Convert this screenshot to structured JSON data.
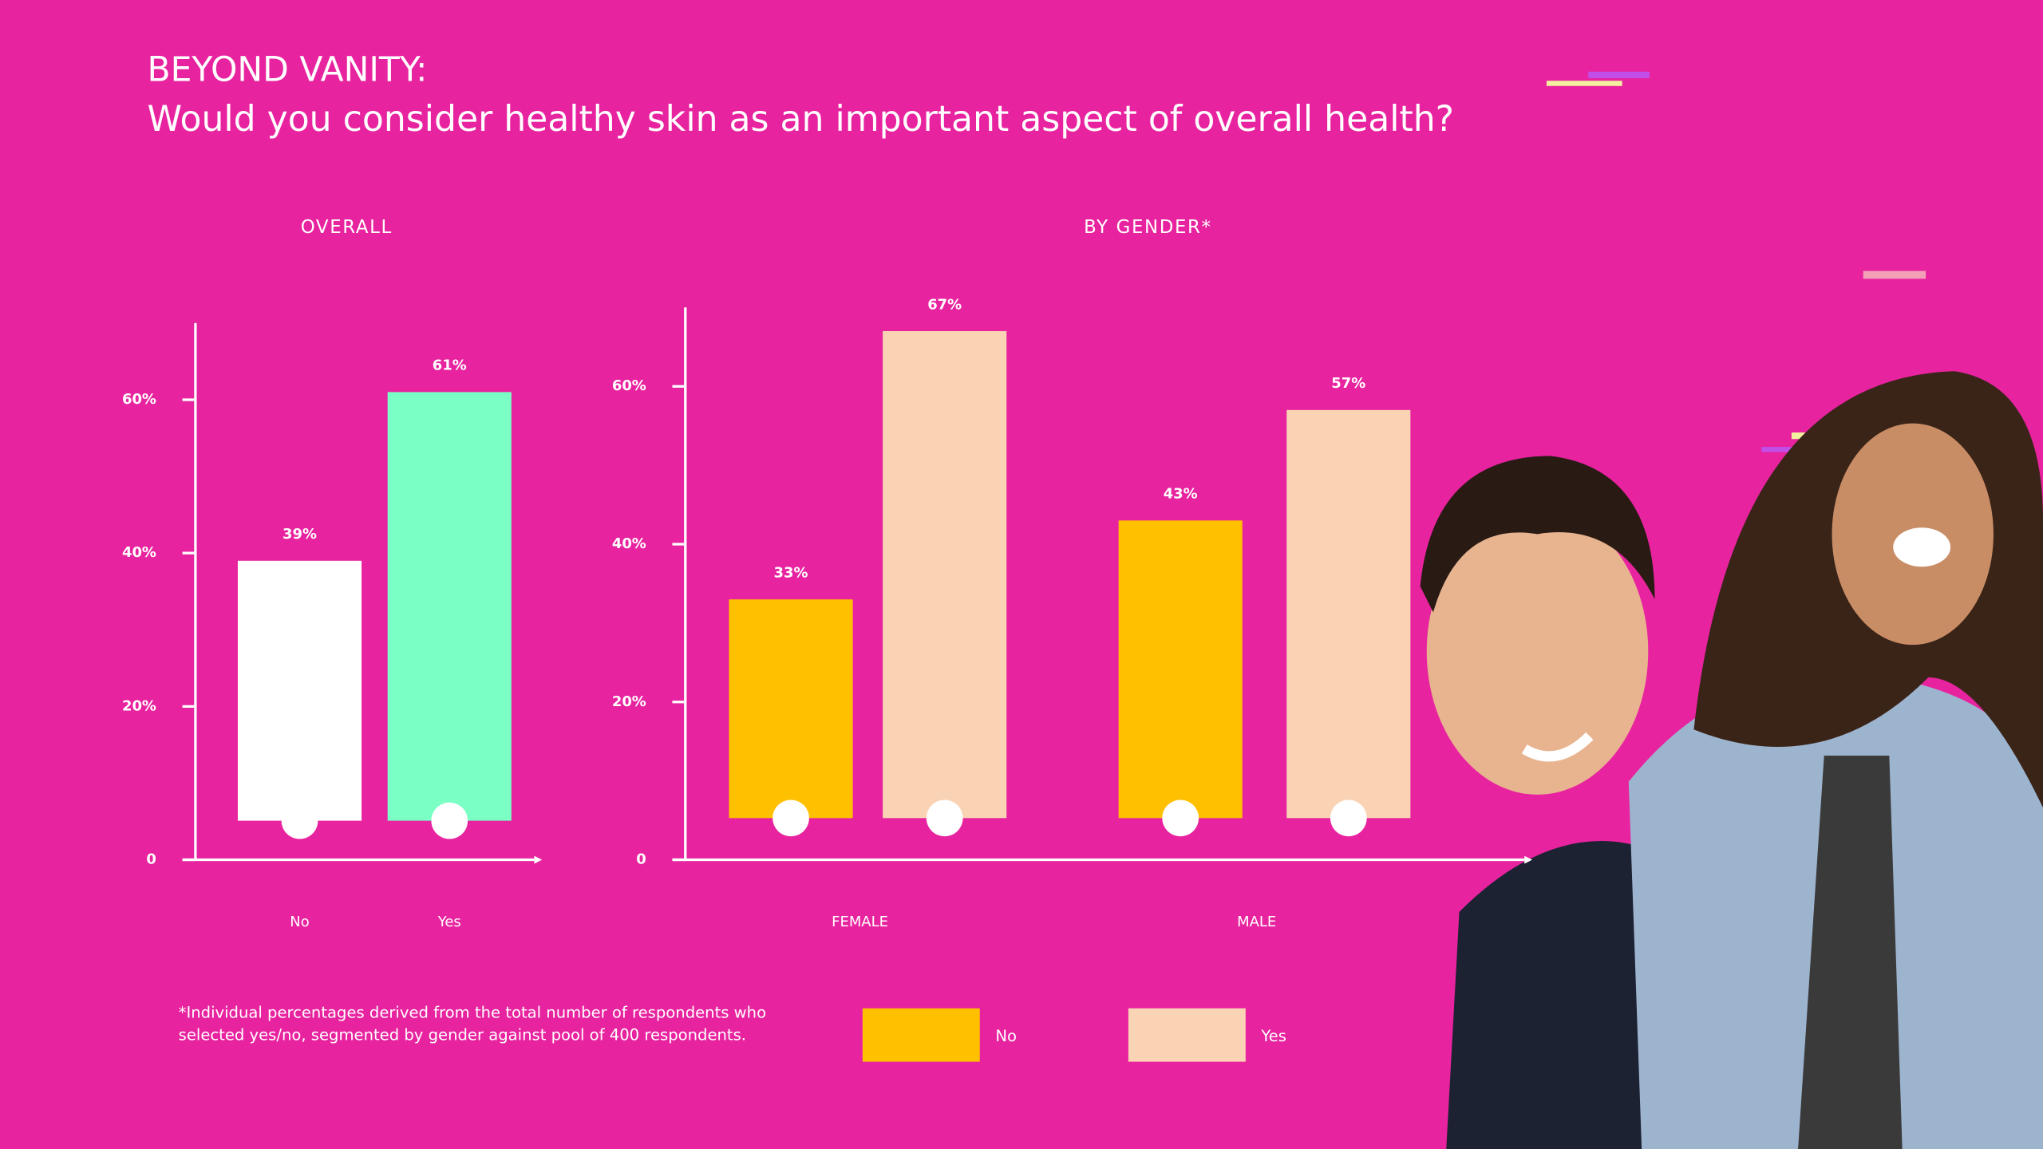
{
  "header": {
    "title": "BEYOND VANITY:",
    "subtitle": "Would you consider healthy skin as an important aspect of overall health?"
  },
  "footnote": [
    "*Individual percentages derived from the total number of respondents who",
    "selected yes/no, segmented by gender against pool of 400 respondents."
  ],
  "chart_data": [
    {
      "type": "bar",
      "title": "OVERALL",
      "categories": [
        "No",
        "Yes"
      ],
      "values": [
        39,
        61
      ],
      "value_labels": [
        "39%",
        "61%"
      ],
      "colors": [
        "#ffffff",
        "#7affc4"
      ],
      "ylim": [
        0,
        70
      ],
      "yticks": [
        0,
        {
          "value": 20,
          "label": "20%"
        },
        {
          "value": 40,
          "label": "40%"
        },
        {
          "value": 60,
          "label": "60%"
        }
      ]
    },
    {
      "type": "grouped-bar",
      "title": "BY GENDER*",
      "categories": [
        "FEMALE",
        "MALE"
      ],
      "series": [
        {
          "name": "No",
          "color": "#ffc000",
          "values": [
            33,
            43
          ],
          "value_labels": [
            "33%",
            "43%"
          ]
        },
        {
          "name": "Yes",
          "color": "#f9d3b4",
          "values": [
            67,
            57
          ],
          "value_labels": [
            "67%",
            "57%"
          ]
        }
      ],
      "ylim": [
        0,
        70
      ],
      "yticks": [
        0,
        {
          "value": 20,
          "label": "20%"
        },
        {
          "value": 40,
          "label": "40%"
        },
        {
          "value": 60,
          "label": "60%"
        }
      ]
    }
  ]
}
